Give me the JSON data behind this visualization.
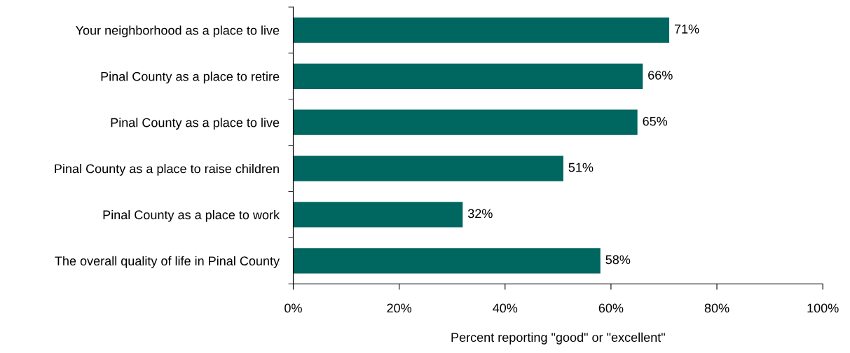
{
  "chart_data": {
    "type": "bar",
    "orientation": "horizontal",
    "xlabel": "Percent reporting \"good\" or \"excellent\"",
    "categories": [
      "Your neighborhood as a place to live",
      "Pinal County as a place to retire",
      "Pinal County as a place to live",
      "Pinal County as a place to raise children",
      "Pinal County as a place to work",
      "The overall quality of life in Pinal County"
    ],
    "values": [
      71,
      66,
      65,
      51,
      32,
      58
    ],
    "value_labels": [
      "71%",
      "66%",
      "65%",
      "51%",
      "32%",
      "58%"
    ],
    "color": "#006660",
    "xlim": [
      0,
      100
    ],
    "xticks": [
      {
        "value": 0,
        "label": "0%"
      },
      {
        "value": 20,
        "label": "20%"
      },
      {
        "value": 40,
        "label": "40%"
      },
      {
        "value": 60,
        "label": "60%"
      },
      {
        "value": 80,
        "label": "80%"
      },
      {
        "value": 100,
        "label": "100%"
      }
    ],
    "grid": false
  }
}
